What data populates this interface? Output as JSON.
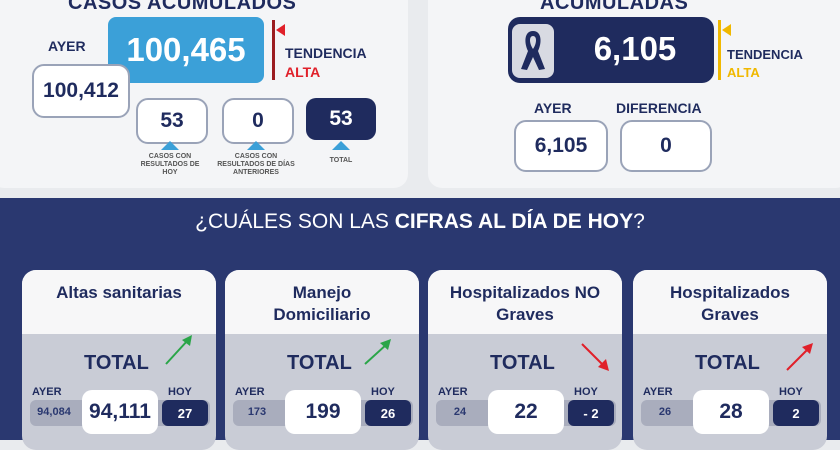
{
  "left_panel": {
    "heading": "CASOS ACUMULADOS",
    "ayer_label": "AYER",
    "main_value": "100,465",
    "ayer_value": "100,412",
    "trend_label": "TENDENCIA",
    "trend_value": "ALTA",
    "stats": [
      {
        "value": "53",
        "caption": "CASOS CON RESULTADOS DE HOY"
      },
      {
        "value": "0",
        "caption": "CASOS CON RESULTADOS DE DÍAS ANTERIORES"
      },
      {
        "value": "53",
        "caption": "TOTAL"
      }
    ]
  },
  "right_panel": {
    "heading": "ACUMULADAS",
    "icon": "mourning-ribbon-icon",
    "main_value": "6,105",
    "trend_label": "TENDENCIA",
    "trend_value": "ALTA",
    "ayer_label": "AYER",
    "ayer_value": "6,105",
    "diff_label": "DIFERENCIA",
    "diff_value": "0"
  },
  "banner": {
    "prefix": "¿CUÁLES SON LAS ",
    "bold": "CIFRAS AL DÍA DE HOY",
    "suffix": "?"
  },
  "cards": [
    {
      "title": "Altas sanitarias",
      "total_label": "TOTAL",
      "ayer_label": "AYER",
      "hoy_label": "HOY",
      "ayer_value": "94,084",
      "value": "94,111",
      "hoy_value": "27",
      "arrow": "up-green"
    },
    {
      "title": "Manejo Domiciliario",
      "total_label": "TOTAL",
      "ayer_label": "AYER",
      "hoy_label": "HOY",
      "ayer_value": "173",
      "value": "199",
      "hoy_value": "26",
      "arrow": "up-green"
    },
    {
      "title": "Hospitalizados NO Graves",
      "total_label": "TOTAL",
      "ayer_label": "AYER",
      "hoy_label": "HOY",
      "ayer_value": "24",
      "value": "22",
      "hoy_value": "- 2",
      "arrow": "down-red"
    },
    {
      "title": "Hospitalizados Graves",
      "total_label": "TOTAL",
      "ayer_label": "AYER",
      "hoy_label": "HOY",
      "ayer_value": "26",
      "value": "28",
      "hoy_value": "2",
      "arrow": "up-red"
    }
  ],
  "colors": {
    "navy": "#1f2b5e",
    "blue": "#3ba0d8",
    "alert_red": "#e0202a",
    "alert_yellow": "#f0b800",
    "green": "#2aa548"
  }
}
